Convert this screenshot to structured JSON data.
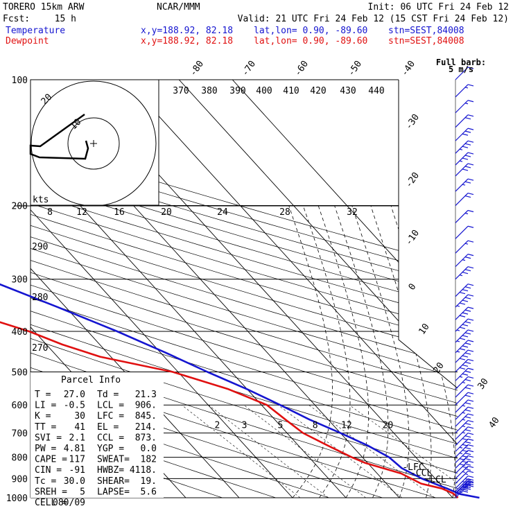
{
  "header": {
    "model": "TORERO  15km ARW",
    "center": "NCAR/MMM",
    "init": "Init: 06 UTC Fri 24 Feb 12",
    "fcst_label": "Fcst:",
    "fcst_value": "15 h",
    "valid": "Valid: 21 UTC Fri 24 Feb 12 (15 CST Fri 24 Feb 12)",
    "rows": [
      {
        "label": "Temperature",
        "xy": "x,y=188.92, 82.18",
        "latlon": "lat,lon=  0.90, -89.60",
        "stn": "stn=SEST,84008"
      },
      {
        "label": "Dewpoint",
        "xy": "x,y=188.92, 82.18",
        "latlon": "lat,lon=  0.90, -89.60",
        "stn": "stn=SEST,84008"
      }
    ],
    "barb_key": "Full barb:",
    "barb_unit": "5 m/s"
  },
  "colors": {
    "temperature": "#1515d0",
    "dewpoint": "#e01010",
    "grid": "#000000"
  },
  "chart_data": {
    "type": "line",
    "title": "Skew-T log-P sounding",
    "pressure_levels": [
      100,
      200,
      300,
      400,
      500,
      600,
      700,
      800,
      900,
      1000
    ],
    "pressure_labels": [
      "100",
      "200",
      "300",
      "400",
      "500",
      "600",
      "700",
      "800",
      "900",
      "1000"
    ],
    "temperature_labels": [
      "-80",
      "-70",
      "-60",
      "-50",
      "-40",
      "-30",
      "-20",
      "-10",
      "0",
      "10",
      "20",
      "30",
      "40"
    ],
    "theta_labels": [
      "370",
      "380",
      "390",
      "400",
      "410",
      "420",
      "430",
      "440"
    ],
    "theta_side_labels": [
      "290",
      "280",
      "270"
    ],
    "mixing_ratio_labels": [
      "2",
      "3",
      "5",
      "8",
      "12",
      "20"
    ],
    "hodo_speed_labels": [
      "8",
      "12",
      "16",
      "20",
      "24",
      "28",
      "32"
    ],
    "hodo_units": "kts",
    "hodo_ring_labels": [
      "20",
      "10"
    ],
    "series": [
      {
        "name": "Temperature",
        "color": "#1515d0",
        "points": [
          [
            1000,
            25.0
          ],
          [
            980,
            22.0
          ],
          [
            950,
            20.5
          ],
          [
            925,
            19.0
          ],
          [
            900,
            17.5
          ],
          [
            850,
            15.5
          ],
          [
            800,
            15.0
          ],
          [
            750,
            13.0
          ],
          [
            700,
            10.0
          ],
          [
            650,
            6.5
          ],
          [
            600,
            3.5
          ],
          [
            550,
            0.0
          ],
          [
            500,
            -4.5
          ],
          [
            450,
            -9.0
          ],
          [
            400,
            -14.5
          ],
          [
            350,
            -21.5
          ],
          [
            300,
            -30.0
          ],
          [
            250,
            -41.0
          ],
          [
            200,
            -53.5
          ],
          [
            175,
            -60.5
          ],
          [
            150,
            -68.5
          ],
          [
            130,
            -73.0
          ],
          [
            115,
            -77.0
          ],
          [
            100,
            -80.0
          ]
        ]
      },
      {
        "name": "Dewpoint",
        "color": "#e01010",
        "points": [
          [
            1000,
            21.0
          ],
          [
            975,
            20.8
          ],
          [
            950,
            19.5
          ],
          [
            925,
            16.5
          ],
          [
            900,
            15.5
          ],
          [
            875,
            14.5
          ],
          [
            850,
            12.0
          ],
          [
            825,
            9.5
          ],
          [
            800,
            8.0
          ],
          [
            750,
            5.5
          ],
          [
            700,
            3.0
          ],
          [
            650,
            2.0
          ],
          [
            600,
            1.0
          ],
          [
            550,
            -3.5
          ],
          [
            500,
            -11.0
          ],
          [
            460,
            -22.0
          ],
          [
            430,
            -27.0
          ],
          [
            400,
            -31.0
          ],
          [
            370,
            -37.0
          ],
          [
            340,
            -50.0
          ],
          [
            300,
            -62.0
          ],
          [
            270,
            -63.0
          ],
          [
            250,
            -66.0
          ],
          [
            220,
            -74.0
          ],
          [
            200,
            -78.0
          ],
          [
            150,
            -84.0
          ],
          [
            120,
            -86.5
          ],
          [
            100,
            -86.0
          ]
        ]
      }
    ],
    "level_markers": [
      {
        "label": "-EL",
        "pressure": 214,
        "t": -51
      },
      {
        "label": "-LFC",
        "pressure": 845,
        "t": 15
      },
      {
        "label": "-CCL",
        "pressure": 873,
        "t": 15.5
      },
      {
        "label": "-LCL",
        "pressure": 906,
        "t": 17
      }
    ],
    "parcel_info": {
      "title": "Parcel Info",
      "rows": [
        [
          "T  =",
          "27.0",
          "Td =",
          "21.3"
        ],
        [
          "LI =",
          "-0.5",
          "LCL =",
          "906."
        ],
        [
          "K  =",
          "30",
          "LFC =",
          "845."
        ],
        [
          "TT =",
          "41",
          "EL  =",
          "214."
        ],
        [
          "SVI =",
          "2.1",
          "CCL =",
          "873."
        ],
        [
          "PW =",
          "4.81",
          "YGP =",
          "0.0"
        ],
        [
          "CAPE =",
          "117",
          "SWEAT=",
          "182"
        ],
        [
          "CIN =",
          "-91",
          "HWBZ=",
          "4118."
        ],
        [
          "Tc =",
          "30.0",
          "SHEAR=",
          "19."
        ],
        [
          "SREH =",
          "5",
          "LAPSE=",
          "5.6"
        ],
        [
          "CELL =",
          "080/09",
          "",
          ""
        ]
      ]
    },
    "winds": [
      [
        1000,
        8
      ],
      [
        990,
        7
      ],
      [
        980,
        5
      ],
      [
        975,
        7
      ],
      [
        965,
        6
      ],
      [
        950,
        5
      ],
      [
        925,
        3
      ],
      [
        900,
        5
      ],
      [
        875,
        6
      ],
      [
        850,
        8
      ],
      [
        825,
        8
      ],
      [
        800,
        7
      ],
      [
        775,
        7
      ],
      [
        750,
        6
      ],
      [
        725,
        5
      ],
      [
        700,
        5
      ],
      [
        675,
        5
      ],
      [
        650,
        5
      ],
      [
        625,
        5
      ],
      [
        600,
        4
      ],
      [
        575,
        4
      ],
      [
        550,
        5
      ],
      [
        525,
        7
      ],
      [
        500,
        8
      ],
      [
        475,
        8
      ],
      [
        450,
        9
      ],
      [
        425,
        9
      ],
      [
        400,
        9
      ],
      [
        375,
        8
      ],
      [
        350,
        9
      ],
      [
        330,
        8
      ],
      [
        300,
        7
      ],
      [
        280,
        5
      ],
      [
        260,
        3
      ],
      [
        240,
        2
      ],
      [
        220,
        3
      ],
      [
        200,
        4
      ],
      [
        185,
        5
      ],
      [
        170,
        6
      ],
      [
        160,
        7
      ],
      [
        150,
        7
      ],
      [
        140,
        6
      ],
      [
        130,
        4
      ],
      [
        120,
        3
      ],
      [
        110,
        3
      ],
      [
        100,
        2
      ]
    ]
  }
}
